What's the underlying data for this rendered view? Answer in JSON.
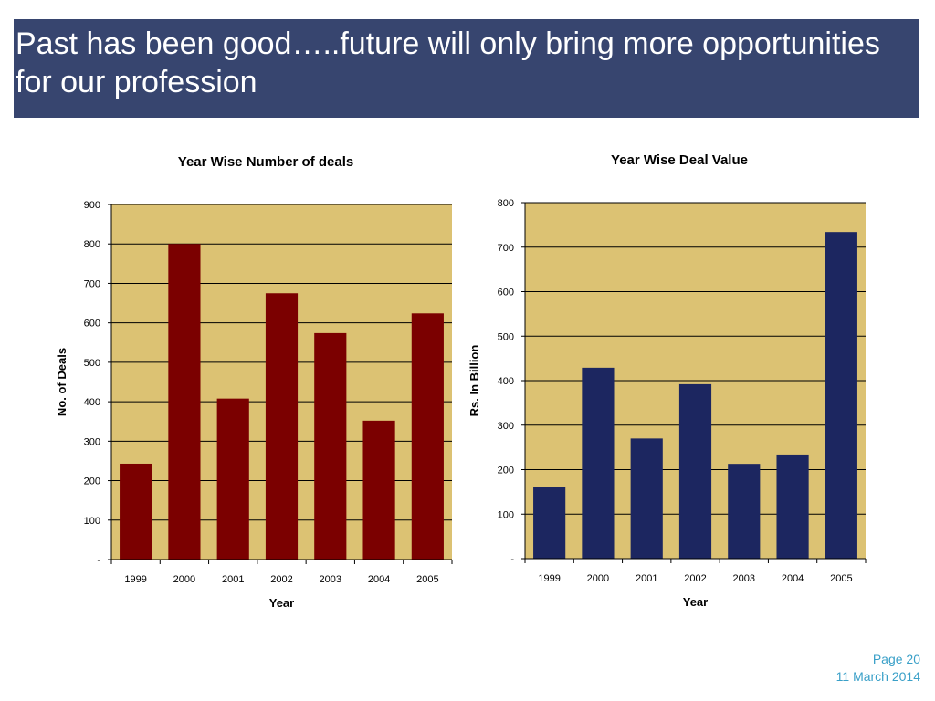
{
  "slide": {
    "title": "Past has been good…..future will only bring more opportunities for our profession"
  },
  "footer": {
    "page": "Page 20",
    "date": "11 March 2014"
  },
  "colors": {
    "title_bg": "#37456f",
    "plot_bg": "#dcc273",
    "deals_bar": "#7b0000",
    "value_bar": "#1c2660",
    "footer_text": "#3aa0c8"
  },
  "chart_data": [
    {
      "type": "bar",
      "title": "Year Wise Number of deals",
      "xlabel": "Year",
      "ylabel": "No. of Deals",
      "categories": [
        "1999",
        "2000",
        "2001",
        "2002",
        "2003",
        "2004",
        "2005"
      ],
      "values": [
        243,
        800,
        408,
        675,
        574,
        352,
        624
      ],
      "ylim": [
        0,
        900
      ],
      "yticks": [
        0,
        100,
        200,
        300,
        400,
        500,
        600,
        700,
        800,
        900
      ],
      "ytick_labels": [
        "-",
        "100",
        "200",
        "300",
        "400",
        "500",
        "600",
        "700",
        "800",
        "900"
      ],
      "grid": true,
      "legend": "none"
    },
    {
      "type": "bar",
      "title": "Year Wise Deal Value",
      "xlabel": "Year",
      "ylabel": "Rs. In Billion",
      "categories": [
        "1999",
        "2000",
        "2001",
        "2002",
        "2003",
        "2004",
        "2005"
      ],
      "values": [
        161,
        429,
        270,
        392,
        213,
        234,
        734
      ],
      "ylim": [
        0,
        800
      ],
      "yticks": [
        0,
        100,
        200,
        300,
        400,
        500,
        600,
        700,
        800
      ],
      "ytick_labels": [
        "-",
        "100",
        "200",
        "300",
        "400",
        "500",
        "600",
        "700",
        "800"
      ],
      "grid": true,
      "legend": "none"
    }
  ]
}
